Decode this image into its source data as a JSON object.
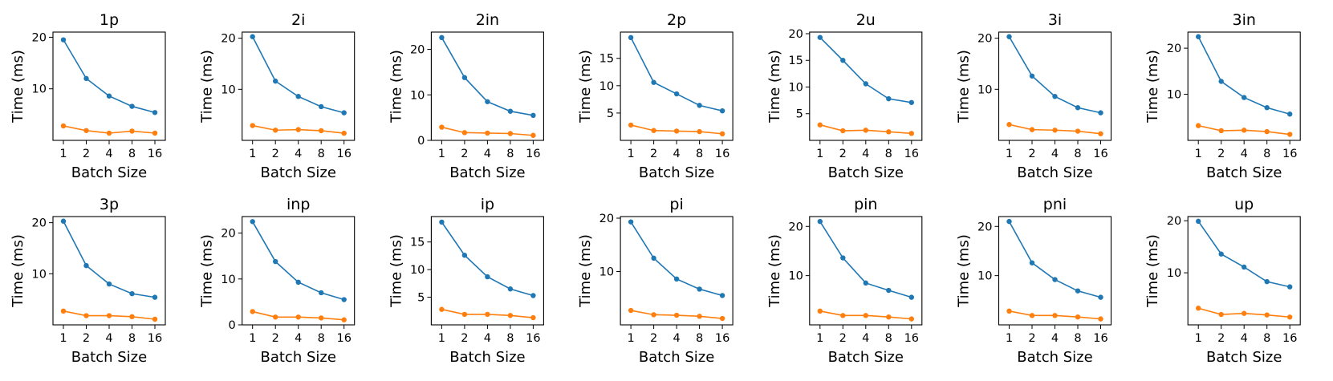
{
  "chart_data": [
    {
      "type": "line",
      "title": "1p",
      "xlabel": "Batch Size",
      "ylabel": "Time (ms)",
      "categories": [
        "1",
        "2",
        "4",
        "8",
        "16"
      ],
      "ylim": [
        0,
        21
      ],
      "yticks": [
        10,
        20
      ],
      "series": [
        {
          "name": "blue",
          "color": "#1f77b4",
          "values": [
            19.5,
            12.0,
            8.6,
            6.6,
            5.4
          ]
        },
        {
          "name": "orange",
          "color": "#ff7f0e",
          "values": [
            2.8,
            1.9,
            1.4,
            1.8,
            1.4
          ]
        }
      ]
    },
    {
      "type": "line",
      "title": "2i",
      "xlabel": "Batch Size",
      "ylabel": "Time (ms)",
      "categories": [
        "1",
        "2",
        "4",
        "8",
        "16"
      ],
      "ylim": [
        0,
        21.2
      ],
      "yticks": [
        10,
        20
      ],
      "series": [
        {
          "name": "blue",
          "color": "#1f77b4",
          "values": [
            20.3,
            11.6,
            8.6,
            6.6,
            5.4
          ]
        },
        {
          "name": "orange",
          "color": "#ff7f0e",
          "values": [
            2.9,
            2.0,
            2.1,
            1.9,
            1.4
          ]
        }
      ]
    },
    {
      "type": "line",
      "title": "2in",
      "xlabel": "Batch Size",
      "ylabel": "Time (ms)",
      "categories": [
        "1",
        "2",
        "4",
        "8",
        "16"
      ],
      "ylim": [
        0,
        23.8
      ],
      "yticks": [
        0,
        10,
        20
      ],
      "series": [
        {
          "name": "blue",
          "color": "#1f77b4",
          "values": [
            22.6,
            13.8,
            8.5,
            6.4,
            5.5
          ]
        },
        {
          "name": "orange",
          "color": "#ff7f0e",
          "values": [
            2.9,
            1.7,
            1.6,
            1.5,
            1.1
          ]
        }
      ]
    },
    {
      "type": "line",
      "title": "2p",
      "xlabel": "Batch Size",
      "ylabel": "Time (ms)",
      "categories": [
        "1",
        "2",
        "4",
        "8",
        "16"
      ],
      "ylim": [
        0,
        19.8
      ],
      "yticks": [
        5,
        10,
        15
      ],
      "series": [
        {
          "name": "blue",
          "color": "#1f77b4",
          "values": [
            18.8,
            10.6,
            8.5,
            6.4,
            5.4
          ]
        },
        {
          "name": "orange",
          "color": "#ff7f0e",
          "values": [
            2.8,
            1.8,
            1.7,
            1.6,
            1.2
          ]
        }
      ]
    },
    {
      "type": "line",
      "title": "2u",
      "xlabel": "Batch Size",
      "ylabel": "Time (ms)",
      "categories": [
        "1",
        "2",
        "4",
        "8",
        "16"
      ],
      "ylim": [
        0,
        20.3
      ],
      "yticks": [
        5,
        10,
        15,
        20
      ],
      "series": [
        {
          "name": "blue",
          "color": "#1f77b4",
          "values": [
            19.3,
            15.0,
            10.6,
            7.8,
            7.1
          ]
        },
        {
          "name": "orange",
          "color": "#ff7f0e",
          "values": [
            2.9,
            1.8,
            1.9,
            1.6,
            1.3
          ]
        }
      ]
    },
    {
      "type": "line",
      "title": "3i",
      "xlabel": "Batch Size",
      "ylabel": "Time (ms)",
      "categories": [
        "1",
        "2",
        "4",
        "8",
        "16"
      ],
      "ylim": [
        0,
        21.2
      ],
      "yticks": [
        10,
        20
      ],
      "series": [
        {
          "name": "blue",
          "color": "#1f77b4",
          "values": [
            20.3,
            12.6,
            8.6,
            6.4,
            5.4
          ]
        },
        {
          "name": "orange",
          "color": "#ff7f0e",
          "values": [
            3.1,
            2.1,
            2.0,
            1.8,
            1.3
          ]
        }
      ]
    },
    {
      "type": "line",
      "title": "3in",
      "xlabel": "Batch Size",
      "ylabel": "Time (ms)",
      "categories": [
        "1",
        "2",
        "4",
        "8",
        "16"
      ],
      "ylim": [
        0,
        23.5
      ],
      "yticks": [
        10,
        20
      ],
      "series": [
        {
          "name": "blue",
          "color": "#1f77b4",
          "values": [
            22.5,
            12.8,
            9.3,
            7.1,
            5.7
          ]
        },
        {
          "name": "orange",
          "color": "#ff7f0e",
          "values": [
            3.2,
            2.1,
            2.2,
            1.9,
            1.3
          ]
        }
      ]
    },
    {
      "type": "line",
      "title": "3p",
      "xlabel": "Batch Size",
      "ylabel": "Time (ms)",
      "categories": [
        "1",
        "2",
        "4",
        "8",
        "16"
      ],
      "ylim": [
        0,
        21.2
      ],
      "yticks": [
        10,
        20
      ],
      "series": [
        {
          "name": "blue",
          "color": "#1f77b4",
          "values": [
            20.3,
            11.6,
            8.0,
            6.1,
            5.4
          ]
        },
        {
          "name": "orange",
          "color": "#ff7f0e",
          "values": [
            2.7,
            1.8,
            1.8,
            1.6,
            1.1
          ]
        }
      ]
    },
    {
      "type": "line",
      "title": "inp",
      "xlabel": "Batch Size",
      "ylabel": "Time (ms)",
      "categories": [
        "1",
        "2",
        "4",
        "8",
        "16"
      ],
      "ylim": [
        0,
        23.6
      ],
      "yticks": [
        0,
        10,
        20
      ],
      "series": [
        {
          "name": "blue",
          "color": "#1f77b4",
          "values": [
            22.5,
            13.8,
            9.3,
            7.0,
            5.5
          ]
        },
        {
          "name": "orange",
          "color": "#ff7f0e",
          "values": [
            2.9,
            1.7,
            1.7,
            1.5,
            1.1
          ]
        }
      ]
    },
    {
      "type": "line",
      "title": "ip",
      "xlabel": "Batch Size",
      "ylabel": "Time (ms)",
      "categories": [
        "1",
        "2",
        "4",
        "8",
        "16"
      ],
      "ylim": [
        0,
        19.6
      ],
      "yticks": [
        5,
        10,
        15
      ],
      "series": [
        {
          "name": "blue",
          "color": "#1f77b4",
          "values": [
            18.6,
            12.6,
            8.7,
            6.5,
            5.3
          ]
        },
        {
          "name": "orange",
          "color": "#ff7f0e",
          "values": [
            2.8,
            1.9,
            1.9,
            1.7,
            1.3
          ]
        }
      ]
    },
    {
      "type": "line",
      "title": "pi",
      "xlabel": "Batch Size",
      "ylabel": "Time (ms)",
      "categories": [
        "1",
        "2",
        "4",
        "8",
        "16"
      ],
      "ylim": [
        0,
        20.3
      ],
      "yticks": [
        10,
        20
      ],
      "series": [
        {
          "name": "blue",
          "color": "#1f77b4",
          "values": [
            19.3,
            12.5,
            8.6,
            6.7,
            5.5
          ]
        },
        {
          "name": "orange",
          "color": "#ff7f0e",
          "values": [
            2.7,
            1.9,
            1.8,
            1.6,
            1.2
          ]
        }
      ]
    },
    {
      "type": "line",
      "title": "pin",
      "xlabel": "Batch Size",
      "ylabel": "Time (ms)",
      "categories": [
        "1",
        "2",
        "4",
        "8",
        "16"
      ],
      "ylim": [
        0,
        22
      ],
      "yticks": [
        10,
        20
      ],
      "series": [
        {
          "name": "blue",
          "color": "#1f77b4",
          "values": [
            21.0,
            13.6,
            8.5,
            7.0,
            5.6
          ]
        },
        {
          "name": "orange",
          "color": "#ff7f0e",
          "values": [
            2.8,
            1.9,
            1.9,
            1.6,
            1.2
          ]
        }
      ]
    },
    {
      "type": "line",
      "title": "pni",
      "xlabel": "Batch Size",
      "ylabel": "Time (ms)",
      "categories": [
        "1",
        "2",
        "4",
        "8",
        "16"
      ],
      "ylim": [
        0,
        22
      ],
      "yticks": [
        10,
        20
      ],
      "series": [
        {
          "name": "blue",
          "color": "#1f77b4",
          "values": [
            21.0,
            12.6,
            9.2,
            6.9,
            5.6
          ]
        },
        {
          "name": "orange",
          "color": "#ff7f0e",
          "values": [
            2.8,
            1.9,
            1.9,
            1.6,
            1.2
          ]
        }
      ]
    },
    {
      "type": "line",
      "title": "up",
      "xlabel": "Batch Size",
      "ylabel": "Time (ms)",
      "categories": [
        "1",
        "2",
        "4",
        "8",
        "16"
      ],
      "ylim": [
        0,
        20.8
      ],
      "yticks": [
        10,
        20
      ],
      "series": [
        {
          "name": "blue",
          "color": "#1f77b4",
          "values": [
            19.9,
            13.6,
            11.1,
            8.3,
            7.3
          ]
        },
        {
          "name": "orange",
          "color": "#ff7f0e",
          "values": [
            3.2,
            2.0,
            2.2,
            1.9,
            1.5
          ]
        }
      ]
    }
  ]
}
